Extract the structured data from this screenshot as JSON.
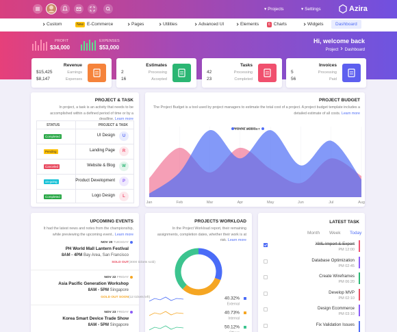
{
  "topbar": {
    "projects": "Projects",
    "settings": "Settings",
    "brand": "Azira"
  },
  "nav": [
    {
      "label": "Custom"
    },
    {
      "badge": "New",
      "label": "E-Commerce"
    },
    {
      "label": "Pages"
    },
    {
      "label": "Utilities"
    },
    {
      "label": "Advanced UI"
    },
    {
      "label": "Elements"
    },
    {
      "badge": "6",
      "label": "Charts"
    },
    {
      "label": "Widgets"
    },
    {
      "label": "Dashboard"
    }
  ],
  "header": {
    "profit": {
      "label": "PROFIT",
      "value": "$34,000"
    },
    "expenses": {
      "label": "EXPENSES",
      "value": "$53,000"
    },
    "welcome": "Hi, welcome back",
    "breadcrumb": [
      "Project",
      "Dashboard"
    ]
  },
  "stats": [
    {
      "title": "Revenue",
      "color": "#f5833b",
      "rows": [
        {
          "value": "$15,425",
          "label": "Earnings"
        },
        {
          "value": "$8,147",
          "label": "Expenses"
        }
      ]
    },
    {
      "title": "Estimates",
      "color": "#2bb673",
      "rows": [
        {
          "value": "2",
          "label": "Processing"
        },
        {
          "value": "16",
          "label": "Accepted"
        }
      ]
    },
    {
      "title": "Tasks",
      "color": "#f0506e",
      "rows": [
        {
          "value": "42",
          "label": "Processing"
        },
        {
          "value": "23",
          "label": "Completed"
        }
      ]
    },
    {
      "title": "Invoices",
      "color": "#5d5fef",
      "rows": [
        {
          "value": "5",
          "label": "Processing"
        },
        {
          "value": "56",
          "label": "Paid"
        }
      ]
    }
  ],
  "project_task": {
    "title": "PROJECT & TASK",
    "description": "In project, a task is an activity that needs to be accomplished within a defined period of time or by a deadline.",
    "learn_more": "Learn more",
    "columns": [
      "STATUS",
      "PROJECT & TASK"
    ],
    "rows": [
      {
        "status": "Completed",
        "status_color": "#28a745",
        "task": "UI Design",
        "initial": "U",
        "color": "#5c6ef5"
      },
      {
        "status": "Pending",
        "status_color": "#ffc107",
        "task": "Landing Page",
        "initial": "R",
        "color": "#f0506e"
      },
      {
        "status": "Canceled",
        "status_color": "#e84a5f",
        "task": "Website & Blog",
        "initial": "W",
        "color": "#2bb673"
      },
      {
        "status": "on-going",
        "status_color": "#17c1d6",
        "task": "Product Development",
        "initial": "P",
        "color": "#8a5cf6"
      },
      {
        "status": "Completed",
        "status_color": "#28a745",
        "task": "Logo Design",
        "initial": "L",
        "color": "#f0506e"
      }
    ]
  },
  "budget": {
    "title": "PROJECT BUDGET",
    "description": "The Project Budget is a tool used by project managers to estimate the total cost of a project. A project budget template includes a detailed estimate of all costs.",
    "learn_more": "Learn more"
  },
  "events": {
    "title": "UPCOMING EVENTS",
    "description": "It had the latest news and notes from the championship, while previewing the upcoming event..",
    "learn_more": "Learn more",
    "items": [
      {
        "date": "NOV 20",
        "day": "TUESDAY",
        "color": "#4f6df5",
        "name": "PH World Mall Lantern Festival",
        "time": "8AM - 4PM",
        "place": "Bay Area, San Francisco",
        "status": "SOLD OUT",
        "status_color": "#e84a5f",
        "note": "(3000 tickets sold)"
      },
      {
        "date": "NOV 22",
        "day": "FRIDAY",
        "color": "#f5a623",
        "name": "Asia Pacific Generation Workshop",
        "time": "8AM - 5PM",
        "place": "Singapore",
        "status": "GOLD OUT SOON",
        "status_color": "#f5a623",
        "note": "(12 tickets left)"
      },
      {
        "date": "NOV 23",
        "day": "FRIDAY",
        "color": "#8a5cf6",
        "name": "Korea Smart Device Trade Show",
        "time": "8AM - 5PM",
        "place": "Singapore"
      }
    ]
  },
  "workload": {
    "title": "PROJECTS WORKLOAD",
    "description": "In the Project Workload report, their remaining assignments, completion dates, whether their work is at risk.",
    "learn_more": "Learn more"
  },
  "latest_task": {
    "title": "LATEST TASK",
    "tabs": [
      "Month",
      "Week",
      "Today"
    ],
    "active_tab": 2,
    "tasks": [
      {
        "name": "XML Import & Export",
        "time": "PM 12:00",
        "done": true,
        "color": "#f0506e"
      },
      {
        "name": "Database Optimization",
        "time": "PM 02:45",
        "done": false,
        "color": "#8a5cf6"
      },
      {
        "name": "Create Wireframes",
        "time": "PM 06:20",
        "done": false,
        "color": "#2bb673"
      },
      {
        "name": "Develop MVP",
        "time": "PM 02:10",
        "done": false,
        "color": "#e84a5f"
      },
      {
        "name": "Design Ecommerce",
        "time": "PM 03:10",
        "done": false,
        "color": "#8a5cf6"
      },
      {
        "name": "Fix Validation Issues",
        "done": false,
        "color": "#4f6df5"
      }
    ]
  },
  "chart_data": [
    {
      "type": "area",
      "categories": [
        "Jan",
        "Feb",
        "Mar",
        "Apr",
        "May",
        "Jun",
        "Jul",
        "Aug"
      ],
      "ylim": [
        0,
        100
      ],
      "series": [
        {
          "name": "AMOUNT USED",
          "color": "#f06b8f",
          "values": [
            27,
            70,
            35,
            70,
            40,
            20,
            55,
            30
          ]
        },
        {
          "name": "TOTAL BUDGET",
          "color": "#4f6df5",
          "values": [
            5,
            35,
            95,
            55,
            95,
            45,
            80,
            25
          ]
        }
      ]
    },
    {
      "type": "pie",
      "categories": [
        "External",
        "Internal",
        "Others"
      ],
      "values": [
        40.32,
        40.73,
        50.12
      ],
      "value_labels": [
        "40.32%",
        "40.73%",
        "50.12%"
      ],
      "colors": [
        "#4a6cf7",
        "#f5a623",
        "#3cc48f"
      ],
      "donut": true
    }
  ]
}
